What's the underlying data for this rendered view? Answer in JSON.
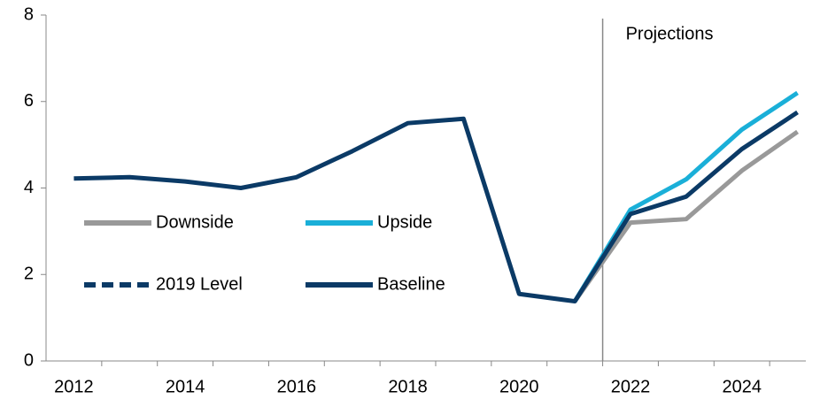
{
  "chart_data": {
    "type": "line",
    "annotation": "Projections",
    "vline": 2021.5,
    "x": [
      2012,
      2013,
      2014,
      2015,
      2016,
      2017,
      2018,
      2019,
      2020,
      2021,
      2022,
      2023,
      2024,
      2025
    ],
    "xlim": [
      2011.5,
      2025.15
    ],
    "xticks": [
      2012,
      2014,
      2016,
      2018,
      2020,
      2022,
      2024
    ],
    "ylim": [
      0,
      8
    ],
    "yticks": [
      0,
      2,
      4,
      6,
      8
    ],
    "series": [
      {
        "name": "Downside",
        "color": "#999999",
        "dashed": false,
        "values": [
          null,
          null,
          null,
          null,
          null,
          null,
          null,
          null,
          null,
          1.38,
          3.2,
          3.28,
          4.4,
          5.3
        ]
      },
      {
        "name": "Upside",
        "color": "#1aafd8",
        "dashed": false,
        "values": [
          null,
          null,
          null,
          null,
          null,
          null,
          null,
          null,
          null,
          1.38,
          3.5,
          4.2,
          5.35,
          6.2
        ]
      },
      {
        "name": "2019 Level",
        "color": "#0b3a66",
        "dashed": true,
        "values": [
          null,
          null,
          null,
          null,
          null,
          null,
          null,
          null,
          null,
          null,
          null,
          null,
          null,
          null
        ]
      },
      {
        "name": "Baseline",
        "color": "#0b3a66",
        "dashed": false,
        "values": [
          4.22,
          4.25,
          4.15,
          4.0,
          4.25,
          4.85,
          5.5,
          5.6,
          1.55,
          1.38,
          3.4,
          3.8,
          4.9,
          5.75
        ]
      }
    ]
  }
}
